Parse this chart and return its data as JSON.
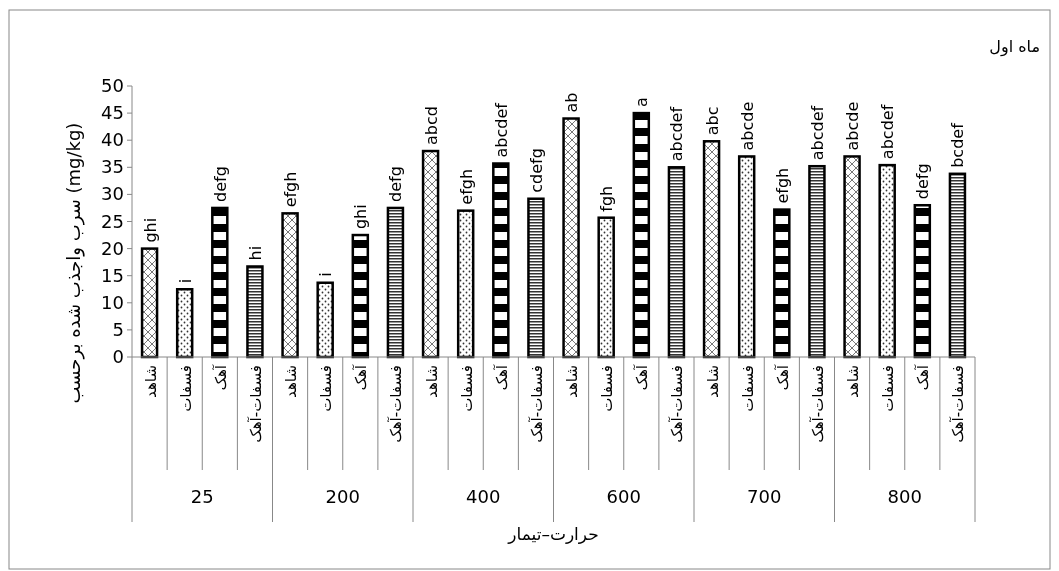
{
  "chart_data": {
    "type": "bar",
    "title": "ماه اول",
    "xlabel": "حرارت–تیمار",
    "ylabel": "سرب واجذب شده برحسب (mg/kg)",
    "categories": [
      "شاهد",
      "فسفات",
      "آهک",
      "فسفات-آهک",
      "شاهد",
      "فسفات",
      "آهک",
      "فسفات-آهک",
      "شاهد",
      "فسفات",
      "آهک",
      "فسفات-آهک",
      "شاهد",
      "فسفات",
      "آهک",
      "فسفات-آهک",
      "شاهد",
      "فسفات",
      "آهک",
      "فسفات-آهک",
      "شاهد",
      "فسفات",
      "آهک",
      "فسفات-آهک"
    ],
    "values": [
      20,
      12.5,
      27.5,
      16.7,
      26.5,
      13.7,
      22.5,
      27.5,
      38,
      27,
      35.7,
      29.2,
      44,
      25.7,
      45,
      35,
      39.8,
      37,
      27.2,
      35.2,
      37,
      35.4,
      28,
      33.8
    ],
    "value_labels": [
      "ghi",
      "i",
      "defg",
      "hi",
      "efgh",
      "i",
      "ghi",
      "defg",
      "abcd",
      "efgh",
      "abcdef",
      "cdefg",
      "ab",
      "fgh",
      "a",
      "abcdef",
      "abc",
      "abcde",
      "efgh",
      "abcdef",
      "abcde",
      "abcdef",
      "defg",
      "bcdef"
    ],
    "annotations": [
      "25",
      "200",
      "400",
      "600",
      "700",
      "800"
    ],
    "ylim": [
      0,
      50
    ],
    "yticks": [
      0,
      5,
      10,
      15,
      20,
      25,
      30,
      35,
      40,
      45,
      50
    ],
    "grid": false
  }
}
